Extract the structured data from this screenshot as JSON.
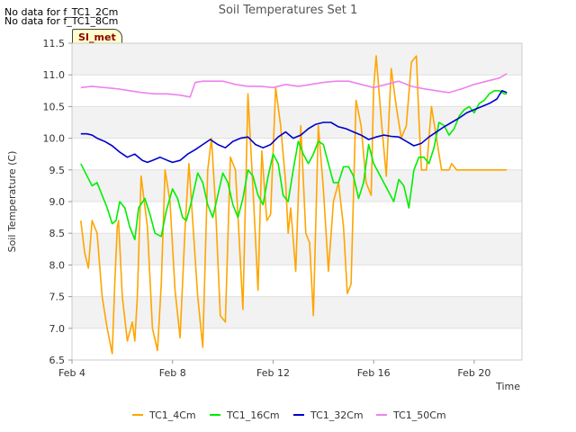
{
  "notes": [
    "No data for f_TC1_2Cm",
    "No data for f_TC1_8Cm"
  ],
  "badge": "SI_met",
  "chart_data": {
    "type": "line",
    "title": "Soil Temperatures Set 1",
    "xlabel": "Time",
    "ylabel": "Soil Temperature (C)",
    "xlim": [
      4.0,
      21.9
    ],
    "ylim": [
      6.5,
      11.5
    ],
    "x_ticks": [
      4,
      8,
      12,
      16,
      20
    ],
    "x_tick_labels": [
      "Feb 4",
      "Feb 8",
      "Feb 12",
      "Feb 16",
      "Feb 20"
    ],
    "y_ticks": [
      6.5,
      7.0,
      7.5,
      8.0,
      8.5,
      9.0,
      9.5,
      10.0,
      10.5,
      11.0,
      11.5
    ],
    "y_tick_labels": [
      "6.5",
      "7.0",
      "7.5",
      "8.0",
      "8.5",
      "9.0",
      "9.5",
      "10.0",
      "10.5",
      "11.0",
      "11.5"
    ],
    "legend_position": "bottom",
    "grid": "alternating horizontal bands",
    "colors": {
      "TC1_4Cm": "#ffa500",
      "TC1_16Cm": "#00ee00",
      "TC1_32Cm": "#0000cd",
      "TC1_50Cm": "#ee82ee"
    },
    "series": [
      {
        "name": "TC1_4Cm",
        "color": "#ffa500",
        "x": [
          4.35,
          4.5,
          4.65,
          4.8,
          5.0,
          5.2,
          5.4,
          5.6,
          5.7,
          5.8,
          5.85,
          6.0,
          6.2,
          6.4,
          6.5,
          6.6,
          6.75,
          7.0,
          7.2,
          7.4,
          7.55,
          7.7,
          7.9,
          8.1,
          8.3,
          8.5,
          8.65,
          8.8,
          9.0,
          9.2,
          9.4,
          9.55,
          9.7,
          9.9,
          10.1,
          10.3,
          10.5,
          10.65,
          10.8,
          11.0,
          11.2,
          11.4,
          11.55,
          11.75,
          11.9,
          12.1,
          12.3,
          12.5,
          12.6,
          12.7,
          12.9,
          13.1,
          13.3,
          13.45,
          13.6,
          13.8,
          14.0,
          14.2,
          14.4,
          14.6,
          14.8,
          14.95,
          15.1,
          15.3,
          15.5,
          15.7,
          15.9,
          16.0,
          16.1,
          16.3,
          16.5,
          16.7,
          16.9,
          17.1,
          17.3,
          17.5,
          17.7,
          17.8,
          17.9,
          18.1,
          18.3,
          18.5,
          18.7,
          18.9,
          19.0,
          19.1,
          19.3,
          19.5,
          19.7,
          19.9,
          20.1,
          20.3,
          20.5,
          20.7,
          20.9,
          21.1,
          21.25,
          21.3
        ],
        "y": [
          8.7,
          8.2,
          7.95,
          8.7,
          8.5,
          7.5,
          7.0,
          6.6,
          7.7,
          8.6,
          8.7,
          7.5,
          6.8,
          7.1,
          6.8,
          7.5,
          9.4,
          8.6,
          7.0,
          6.65,
          7.7,
          9.5,
          9.0,
          7.6,
          6.85,
          8.6,
          9.6,
          8.7,
          7.5,
          6.7,
          9.5,
          10.0,
          9.0,
          7.2,
          7.1,
          9.7,
          9.5,
          8.4,
          7.3,
          10.7,
          9.2,
          7.6,
          9.8,
          8.7,
          8.8,
          10.8,
          10.2,
          9.3,
          8.5,
          8.9,
          7.9,
          10.2,
          8.5,
          8.35,
          7.2,
          10.2,
          9.2,
          7.9,
          9.0,
          9.3,
          8.6,
          7.55,
          7.7,
          10.6,
          10.2,
          9.3,
          9.1,
          10.8,
          11.3,
          10.3,
          9.4,
          11.1,
          10.5,
          10.0,
          10.2,
          11.2,
          11.3,
          10.3,
          9.5,
          9.5,
          10.5,
          10.0,
          9.5,
          9.5,
          9.5,
          9.6,
          9.5,
          9.5,
          9.5,
          9.5,
          9.5,
          9.5,
          9.5,
          9.5,
          9.5,
          9.5,
          9.5,
          9.5
        ]
      },
      {
        "name": "TC1_16Cm",
        "color": "#00ee00",
        "x": [
          4.35,
          4.6,
          4.8,
          5.0,
          5.2,
          5.4,
          5.6,
          5.75,
          5.9,
          6.1,
          6.3,
          6.5,
          6.65,
          6.9,
          7.1,
          7.3,
          7.55,
          7.75,
          8.0,
          8.2,
          8.4,
          8.55,
          8.75,
          9.0,
          9.2,
          9.4,
          9.6,
          9.8,
          10.0,
          10.2,
          10.4,
          10.6,
          10.8,
          11.0,
          11.2,
          11.4,
          11.6,
          11.8,
          12.0,
          12.2,
          12.4,
          12.6,
          12.8,
          13.0,
          13.2,
          13.4,
          13.6,
          13.8,
          14.0,
          14.2,
          14.4,
          14.6,
          14.8,
          15.0,
          15.2,
          15.4,
          15.6,
          15.8,
          16.0,
          16.2,
          16.4,
          16.6,
          16.8,
          17.0,
          17.2,
          17.4,
          17.6,
          17.8,
          18.0,
          18.2,
          18.4,
          18.6,
          18.8,
          19.0,
          19.2,
          19.4,
          19.6,
          19.8,
          20.0,
          20.2,
          20.4,
          20.6,
          20.8,
          21.0,
          21.2,
          21.3
        ],
        "y": [
          9.6,
          9.4,
          9.25,
          9.3,
          9.1,
          8.9,
          8.65,
          8.7,
          9.0,
          8.9,
          8.6,
          8.4,
          8.9,
          9.05,
          8.8,
          8.5,
          8.45,
          8.85,
          9.2,
          9.05,
          8.75,
          8.7,
          9.0,
          9.45,
          9.3,
          8.95,
          8.75,
          9.1,
          9.45,
          9.3,
          8.95,
          8.75,
          9.05,
          9.5,
          9.4,
          9.1,
          8.95,
          9.4,
          9.75,
          9.6,
          9.1,
          9.0,
          9.5,
          9.95,
          9.75,
          9.6,
          9.75,
          9.95,
          9.9,
          9.6,
          9.3,
          9.3,
          9.55,
          9.55,
          9.4,
          9.05,
          9.3,
          9.9,
          9.6,
          9.45,
          9.3,
          9.15,
          9.0,
          9.35,
          9.25,
          8.9,
          9.5,
          9.7,
          9.7,
          9.6,
          9.85,
          10.25,
          10.2,
          10.05,
          10.15,
          10.35,
          10.45,
          10.5,
          10.4,
          10.55,
          10.6,
          10.7,
          10.75,
          10.75,
          10.7,
          10.7
        ]
      },
      {
        "name": "TC1_32Cm",
        "color": "#0000cd",
        "x": [
          4.35,
          4.6,
          4.8,
          5.0,
          5.3,
          5.6,
          5.9,
          6.2,
          6.5,
          6.8,
          7.0,
          7.2,
          7.5,
          7.8,
          8.0,
          8.3,
          8.6,
          8.9,
          9.2,
          9.5,
          9.8,
          10.1,
          10.4,
          10.7,
          11.0,
          11.3,
          11.6,
          11.9,
          12.2,
          12.5,
          12.8,
          13.1,
          13.4,
          13.7,
          14.0,
          14.3,
          14.6,
          14.9,
          15.2,
          15.5,
          15.8,
          16.1,
          16.4,
          16.7,
          17.0,
          17.3,
          17.6,
          17.9,
          18.2,
          18.5,
          18.8,
          19.1,
          19.4,
          19.7,
          20.0,
          20.3,
          20.6,
          20.9,
          21.1,
          21.3
        ],
        "y": [
          10.07,
          10.07,
          10.05,
          10.0,
          9.95,
          9.88,
          9.78,
          9.7,
          9.75,
          9.65,
          9.62,
          9.65,
          9.7,
          9.65,
          9.62,
          9.65,
          9.75,
          9.82,
          9.9,
          9.98,
          9.9,
          9.85,
          9.95,
          10.0,
          10.02,
          9.9,
          9.85,
          9.9,
          10.02,
          10.1,
          10.0,
          10.05,
          10.15,
          10.22,
          10.25,
          10.25,
          10.18,
          10.15,
          10.1,
          10.05,
          9.98,
          10.02,
          10.05,
          10.03,
          10.02,
          9.95,
          9.88,
          9.92,
          10.02,
          10.1,
          10.18,
          10.25,
          10.32,
          10.4,
          10.45,
          10.5,
          10.55,
          10.62,
          10.75,
          10.72
        ]
      },
      {
        "name": "TC1_50Cm",
        "color": "#ee82ee",
        "x": [
          4.35,
          4.8,
          5.3,
          5.8,
          6.3,
          6.8,
          7.3,
          7.8,
          8.3,
          8.7,
          8.9,
          9.2,
          9.6,
          10.0,
          10.5,
          11.0,
          11.5,
          12.0,
          12.5,
          13.0,
          13.5,
          14.0,
          14.5,
          15.0,
          15.5,
          16.0,
          16.5,
          17.0,
          17.5,
          18.0,
          18.5,
          19.0,
          19.5,
          20.0,
          20.5,
          21.0,
          21.3
        ],
        "y": [
          10.8,
          10.82,
          10.8,
          10.78,
          10.75,
          10.72,
          10.7,
          10.7,
          10.68,
          10.65,
          10.88,
          10.9,
          10.9,
          10.9,
          10.85,
          10.82,
          10.82,
          10.8,
          10.85,
          10.82,
          10.85,
          10.88,
          10.9,
          10.9,
          10.85,
          10.8,
          10.85,
          10.9,
          10.82,
          10.78,
          10.75,
          10.72,
          10.78,
          10.85,
          10.9,
          10.95,
          11.02
        ]
      }
    ]
  }
}
